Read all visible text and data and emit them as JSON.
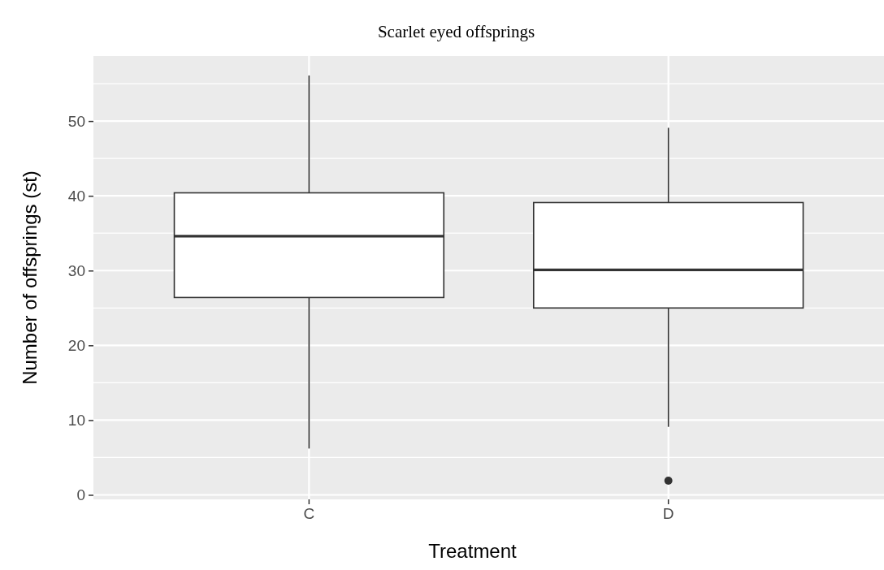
{
  "chart_data": {
    "type": "box",
    "title": "Scarlet eyed offsprings",
    "xlabel": "Treatment",
    "ylabel": "Number of offsprings (st)",
    "categories": [
      "C",
      "D"
    ],
    "boxes": [
      {
        "low": 6.2,
        "q1": 26.4,
        "median": 34.6,
        "q3": 40.4,
        "high": 56.1
      },
      {
        "low": 9.1,
        "q1": 25.0,
        "median": 30.1,
        "q3": 39.1,
        "high": 49.1,
        "outliers": [
          1.9
        ]
      }
    ],
    "ylim": [
      -0.6,
      58.7
    ],
    "yticks": [
      0,
      10,
      20,
      30,
      40,
      50
    ],
    "grid": true
  }
}
